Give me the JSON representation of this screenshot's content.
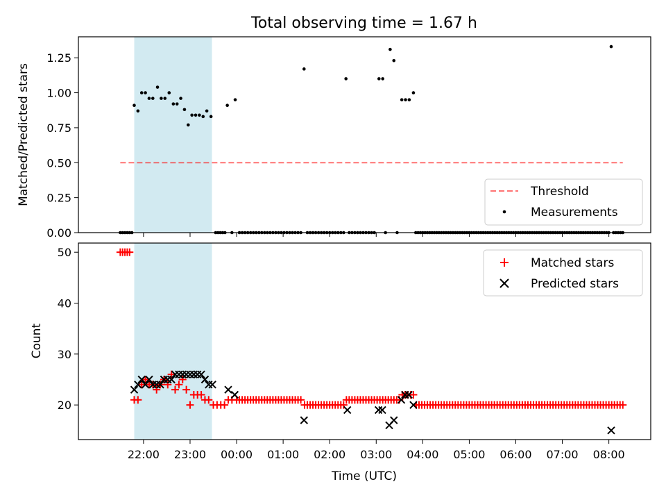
{
  "title": "Total observing time = 1.67 h",
  "x_axis": {
    "label": "Time (UTC)",
    "range_hours": [
      20.6,
      32.9
    ],
    "ticks": [
      {
        "h": 22,
        "label": "22:00"
      },
      {
        "h": 23,
        "label": "23:00"
      },
      {
        "h": 24,
        "label": "00:00"
      },
      {
        "h": 25,
        "label": "01:00"
      },
      {
        "h": 26,
        "label": "02:00"
      },
      {
        "h": 27,
        "label": "03:00"
      },
      {
        "h": 28,
        "label": "04:00"
      },
      {
        "h": 29,
        "label": "05:00"
      },
      {
        "h": 30,
        "label": "06:00"
      },
      {
        "h": 31,
        "label": "07:00"
      },
      {
        "h": 32,
        "label": "08:00"
      }
    ]
  },
  "shaded_interval_hours": [
    21.8,
    23.47
  ],
  "colors": {
    "shade": "#add8e6",
    "threshold": "#ff0000",
    "measurements": "#000000",
    "matched": "#ff0000",
    "predicted": "#000000"
  },
  "chart_data": [
    {
      "type": "scatter",
      "ylabel": "Matched/Predicted stars",
      "ylim": [
        0,
        1.4
      ],
      "yticks": [
        "0.00",
        "0.25",
        "0.50",
        "0.75",
        "1.00",
        "1.25"
      ],
      "legend_position": "lower-right",
      "threshold": {
        "name": "Threshold",
        "value": 0.5,
        "x_range_hours": [
          21.5,
          32.3
        ]
      },
      "measurements_name": "Measurements",
      "ratio_points": [
        [
          21.8,
          0.91
        ],
        [
          21.88,
          0.87
        ],
        [
          21.96,
          1.0
        ],
        [
          22.04,
          1.0
        ],
        [
          22.12,
          0.96
        ],
        [
          22.2,
          0.96
        ],
        [
          22.3,
          1.04
        ],
        [
          22.38,
          0.96
        ],
        [
          22.46,
          0.96
        ],
        [
          22.55,
          1.0
        ],
        [
          22.64,
          0.92
        ],
        [
          22.72,
          0.92
        ],
        [
          22.8,
          0.96
        ],
        [
          22.88,
          0.88
        ],
        [
          22.96,
          0.77
        ],
        [
          23.04,
          0.84
        ],
        [
          23.12,
          0.84
        ],
        [
          23.2,
          0.84
        ],
        [
          23.28,
          0.83
        ],
        [
          23.36,
          0.87
        ],
        [
          23.45,
          0.83
        ],
        [
          23.8,
          0.91
        ],
        [
          23.97,
          0.95
        ],
        [
          25.45,
          1.17
        ],
        [
          26.35,
          1.1
        ],
        [
          27.06,
          1.1
        ],
        [
          27.14,
          1.1
        ],
        [
          27.3,
          1.31
        ],
        [
          27.38,
          1.23
        ],
        [
          27.55,
          0.95
        ],
        [
          27.63,
          0.95
        ],
        [
          27.71,
          0.95
        ],
        [
          27.8,
          1.0
        ],
        [
          32.05,
          1.33
        ]
      ],
      "zero_points_hours": [
        21.5,
        21.55,
        21.6,
        21.65,
        21.7,
        21.75,
        23.55,
        23.6,
        23.65,
        23.7,
        23.75,
        23.9,
        24.06,
        24.12,
        24.18,
        24.24,
        24.3,
        24.36,
        24.42,
        24.48,
        24.54,
        24.6,
        24.66,
        24.72,
        24.78,
        24.84,
        24.9,
        24.96,
        25.02,
        25.08,
        25.14,
        25.2,
        25.26,
        25.32,
        25.38,
        25.52,
        25.58,
        25.64,
        25.7,
        25.76,
        25.82,
        25.88,
        25.94,
        26.0,
        26.06,
        26.12,
        26.18,
        26.24,
        26.3,
        26.42,
        26.48,
        26.54,
        26.6,
        26.66,
        26.72,
        26.78,
        26.84,
        26.9,
        26.96,
        27.2,
        27.45,
        27.85,
        27.9,
        27.95,
        28.0,
        28.05,
        28.1,
        28.15,
        28.2,
        28.25,
        28.3,
        28.35,
        28.4,
        28.45,
        28.5,
        28.55,
        28.6,
        28.65,
        28.7,
        28.75,
        28.8,
        28.85,
        28.9,
        28.95,
        29.0,
        29.05,
        29.1,
        29.15,
        29.2,
        29.25,
        29.3,
        29.35,
        29.4,
        29.45,
        29.5,
        29.55,
        29.6,
        29.65,
        29.7,
        29.75,
        29.8,
        29.85,
        29.9,
        29.95,
        30.0,
        30.05,
        30.1,
        30.15,
        30.2,
        30.25,
        30.3,
        30.35,
        30.4,
        30.45,
        30.5,
        30.55,
        30.6,
        30.65,
        30.7,
        30.75,
        30.8,
        30.85,
        30.9,
        30.95,
        31.0,
        31.05,
        31.1,
        31.15,
        31.2,
        31.25,
        31.3,
        31.35,
        31.4,
        31.45,
        31.5,
        31.55,
        31.6,
        31.65,
        31.7,
        31.75,
        31.8,
        31.85,
        31.9,
        31.95,
        32.0,
        32.1,
        32.15,
        32.2,
        32.25,
        32.3
      ]
    },
    {
      "type": "scatter",
      "ylabel": "Count",
      "ylim": [
        13.2,
        51.8
      ],
      "yticks": [
        20,
        30,
        40,
        50
      ],
      "legend_position": "upper-right",
      "series": [
        {
          "name": "Matched stars",
          "marker": "plus",
          "explicit_points": [
            [
              21.5,
              50
            ],
            [
              21.55,
              50
            ],
            [
              21.6,
              50
            ],
            [
              21.65,
              50
            ],
            [
              21.7,
              50
            ],
            [
              21.8,
              21
            ],
            [
              21.88,
              21
            ],
            [
              21.96,
              24
            ],
            [
              22.04,
              25
            ],
            [
              22.12,
              24
            ],
            [
              22.2,
              24
            ],
            [
              22.28,
              23
            ],
            [
              22.36,
              24
            ],
            [
              22.44,
              25
            ],
            [
              22.52,
              24
            ],
            [
              22.6,
              26
            ],
            [
              22.68,
              23
            ],
            [
              22.76,
              24
            ],
            [
              22.84,
              25
            ],
            [
              22.92,
              23
            ],
            [
              23.0,
              20
            ],
            [
              23.08,
              22
            ],
            [
              23.16,
              22
            ],
            [
              23.24,
              22
            ],
            [
              23.32,
              21
            ],
            [
              23.4,
              21
            ],
            [
              23.5,
              20
            ],
            [
              23.58,
              20
            ],
            [
              23.66,
              20
            ],
            [
              23.74,
              20
            ],
            [
              23.82,
              21
            ],
            [
              23.9,
              21
            ]
          ],
          "constant_runs": [
            {
              "from": 24.0,
              "to": 25.4,
              "step": 0.06,
              "value": 21
            },
            {
              "from": 25.46,
              "to": 26.3,
              "step": 0.06,
              "value": 20
            },
            {
              "from": 26.36,
              "to": 27.5,
              "step": 0.06,
              "value": 21
            },
            {
              "from": 27.56,
              "to": 27.8,
              "step": 0.06,
              "value": 22
            },
            {
              "from": 27.86,
              "to": 32.3,
              "step": 0.06,
              "value": 20
            }
          ]
        },
        {
          "name": "Predicted stars",
          "marker": "x",
          "points": [
            [
              21.8,
              23
            ],
            [
              21.88,
              24
            ],
            [
              21.96,
              25
            ],
            [
              22.04,
              24
            ],
            [
              22.12,
              25
            ],
            [
              22.2,
              24
            ],
            [
              22.28,
              24
            ],
            [
              22.36,
              24
            ],
            [
              22.44,
              25
            ],
            [
              22.52,
              25
            ],
            [
              22.6,
              25
            ],
            [
              22.68,
              26
            ],
            [
              22.76,
              26
            ],
            [
              22.84,
              26
            ],
            [
              22.92,
              26
            ],
            [
              23.0,
              26
            ],
            [
              23.08,
              26
            ],
            [
              23.16,
              26
            ],
            [
              23.24,
              26
            ],
            [
              23.32,
              25
            ],
            [
              23.4,
              24
            ],
            [
              23.48,
              24
            ],
            [
              23.82,
              23
            ],
            [
              23.96,
              22
            ],
            [
              25.45,
              17
            ],
            [
              26.38,
              19
            ],
            [
              27.05,
              19
            ],
            [
              27.13,
              19
            ],
            [
              27.28,
              16
            ],
            [
              27.38,
              17
            ],
            [
              27.54,
              21
            ],
            [
              27.62,
              22
            ],
            [
              27.7,
              22
            ],
            [
              27.8,
              20
            ],
            [
              32.05,
              15
            ]
          ]
        }
      ]
    }
  ]
}
